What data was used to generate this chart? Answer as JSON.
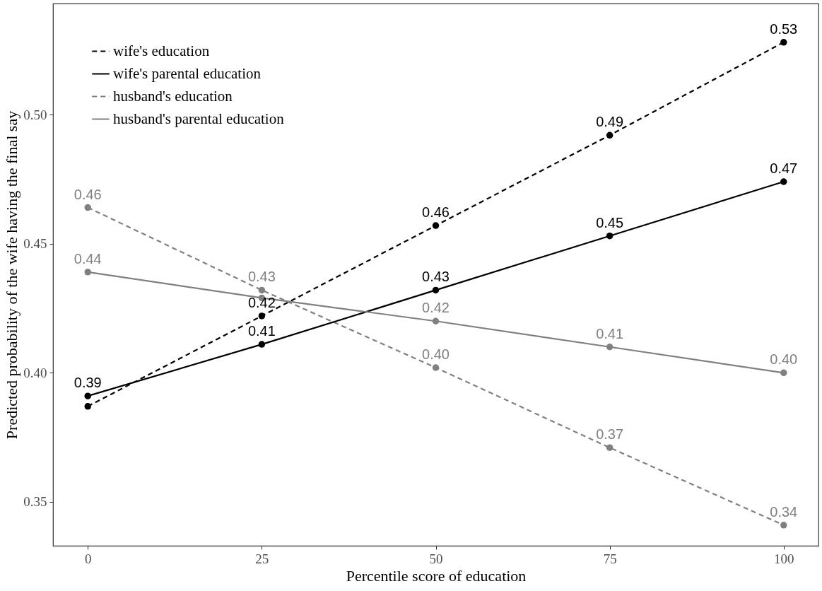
{
  "chart_data": {
    "type": "line",
    "xlabel": "Percentile score of education",
    "ylabel": "Predicted probability of the wife having the final say",
    "x": [
      0,
      25,
      50,
      75,
      100
    ],
    "xlim": [
      -5,
      105
    ],
    "ylim": [
      0.333,
      0.543
    ],
    "xticks": [
      0,
      25,
      50,
      75,
      100
    ],
    "yticks": [
      0.35,
      {
        "value": 0.4,
        "label": "0.40"
      },
      0.45,
      {
        "value": 0.5,
        "label": "0.50"
      }
    ],
    "grid": false,
    "legend": "top left",
    "marker": "circle",
    "series": [
      {
        "name": "wife's education",
        "color": "#000000",
        "line_style": "dashed",
        "values": [
          0.387,
          0.422,
          0.457,
          0.492,
          0.528
        ],
        "value_labels": [
          null,
          "0.42",
          "0.46",
          "0.49",
          "0.53"
        ]
      },
      {
        "name": "wife's parental education",
        "color": "#000000",
        "line_style": "solid",
        "values": [
          0.391,
          0.411,
          0.432,
          0.453,
          0.474
        ],
        "value_labels": [
          "0.39",
          "0.41",
          "0.43",
          "0.45",
          "0.47"
        ]
      },
      {
        "name": "husband's education",
        "color": "#808080",
        "line_style": "dashed",
        "values": [
          0.464,
          0.432,
          0.402,
          0.371,
          0.341
        ],
        "value_labels": [
          "0.46",
          "0.43",
          "0.40",
          "0.37",
          "0.34"
        ]
      },
      {
        "name": "husband's parental education",
        "color": "#808080",
        "line_style": "solid",
        "values": [
          0.439,
          0.429,
          0.42,
          0.41,
          0.4
        ],
        "value_labels": [
          "0.44",
          null,
          "0.42",
          "0.41",
          "0.40"
        ]
      }
    ]
  }
}
